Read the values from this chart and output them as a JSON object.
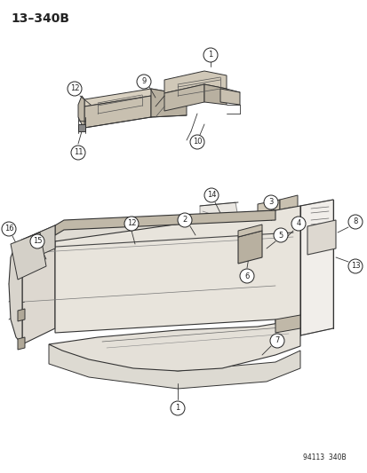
{
  "title": "13–340B",
  "background_color": "#ffffff",
  "figure_width": 4.14,
  "figure_height": 5.33,
  "dpi": 100,
  "footer_text": "94113  340B",
  "line_color": "#222222",
  "title_fontsize": 10
}
